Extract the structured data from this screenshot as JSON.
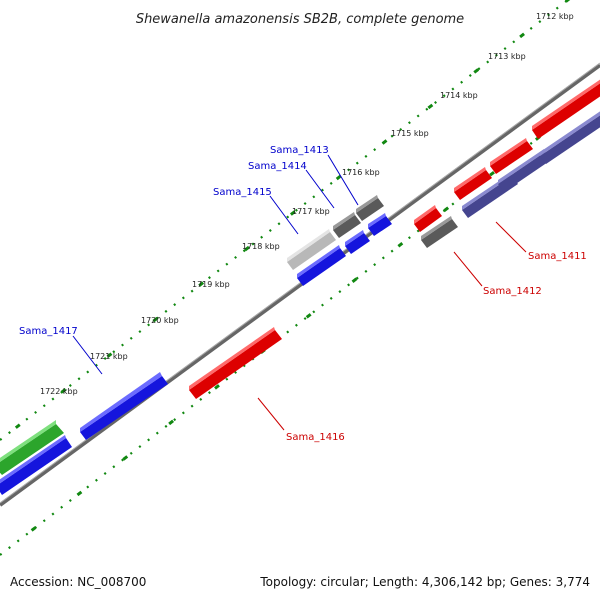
{
  "title": "Shewanella amazonensis SB2B, complete genome",
  "ticks": [
    "1712 kbp",
    "1713 kbp",
    "1714 kbp",
    "1715 kbp",
    "1716 kbp",
    "1717 kbp",
    "1718 kbp",
    "1719 kbp",
    "1720 kbp",
    "1721 kbp",
    "1722 kbp"
  ],
  "gene_labels": {
    "sama_1411": "Sama_1411",
    "sama_1412": "Sama_1412",
    "sama_1413": "Sama_1413",
    "sama_1414": "Sama_1414",
    "sama_1415": "Sama_1415",
    "sama_1416": "Sama_1416",
    "sama_1417": "Sama_1417"
  },
  "footer": {
    "accession": "Accession: NC_008700",
    "topology": "Topology: circular; Length: 4,306,142 bp; Genes: 3,774"
  },
  "colors": {
    "forward_gene": "#0000ee",
    "reverse_gene": "#ee0000",
    "gray_gene": "#666666",
    "light_gray_gene": "#bbbbbb",
    "purple_gene": "#4a4a9a",
    "green_gene": "#33bb33",
    "backbone": "#777777",
    "tick_dots": "#118811",
    "label_blue": "#0000cc",
    "label_red": "#cc0000"
  }
}
